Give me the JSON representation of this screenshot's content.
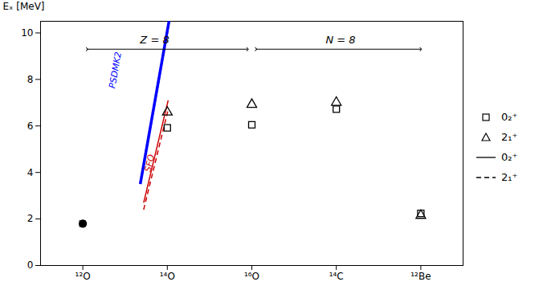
{
  "chart_data": {
    "type": "scatter",
    "ylabel": "Eₓ [MeV]",
    "xlim": [
      -0.5,
      4.5
    ],
    "xticks": [
      {
        "value": 0,
        "label": "¹²O"
      },
      {
        "value": 1,
        "label": "¹⁴O"
      },
      {
        "value": 2,
        "label": "¹⁶O"
      },
      {
        "value": 3,
        "label": "¹⁴C"
      },
      {
        "value": 4,
        "label": "¹²Be"
      }
    ],
    "ylim": [
      0,
      10.5
    ],
    "yticks": [
      0,
      2,
      4,
      6,
      8,
      10
    ],
    "grid": false,
    "legend": "right",
    "series": [
      {
        "type": "line",
        "line_style": "solid",
        "color": "#0000ff",
        "x": [
          0.68,
          1.02
        ],
        "values": [
          3.5,
          10.5
        ]
      },
      {
        "type": "line",
        "line_style": "dotted",
        "color": "#0000ff",
        "x": [
          0.72,
          1.02
        ],
        "values": [
          4.3,
          10.5
        ]
      },
      {
        "type": "line",
        "line_style": "solid",
        "color": "#cc0000",
        "x": [
          0.72,
          1.01
        ],
        "values": [
          2.7,
          7.1
        ]
      },
      {
        "type": "line",
        "line_style": "dashed",
        "color": "#cc0000",
        "x": [
          0.72,
          1.01
        ],
        "values": [
          2.4,
          6.7
        ]
      },
      {
        "type": "scatter",
        "marker": "open square",
        "color": "black",
        "x": [
          1,
          2,
          3,
          4
        ],
        "values": [
          5.92,
          6.05,
          6.72,
          2.24
        ]
      },
      {
        "type": "scatter",
        "marker": "open triangle",
        "color": "black",
        "x": [
          1,
          2,
          3,
          4
        ],
        "values": [
          6.59,
          6.92,
          7.01,
          2.15
        ]
      },
      {
        "type": "scatter",
        "marker": "filled circle",
        "color": "black",
        "x": [
          0
        ],
        "values": [
          1.8
        ],
        "errors": [
          0.12
        ]
      }
    ],
    "annotations": [
      {
        "text": "PSDMK2",
        "x": 0.38,
        "y": 7.6,
        "color": "#0000ff"
      },
      {
        "text": "SFO",
        "x": 0.8,
        "y": 4.0,
        "color": "#cc0000"
      },
      {
        "text": "Z = 8",
        "x": 0.85,
        "y": 9.55
      },
      {
        "text": "N = 8",
        "x": 3.05,
        "y": 9.55
      }
    ],
    "arrows": [
      {
        "x1": 0.05,
        "x2": 1.95,
        "y": 9.3
      },
      {
        "x1": 2.05,
        "x2": 4.0,
        "y": 9.3
      }
    ],
    "legend_entries": [
      {
        "label": "0₂⁺",
        "marker": "open square"
      },
      {
        "label": "2₁⁺",
        "marker": "open triangle"
      },
      {
        "label": "0₂⁺",
        "line_style": "solid"
      },
      {
        "label": "2₁⁺",
        "line_style": "dashed"
      }
    ]
  }
}
